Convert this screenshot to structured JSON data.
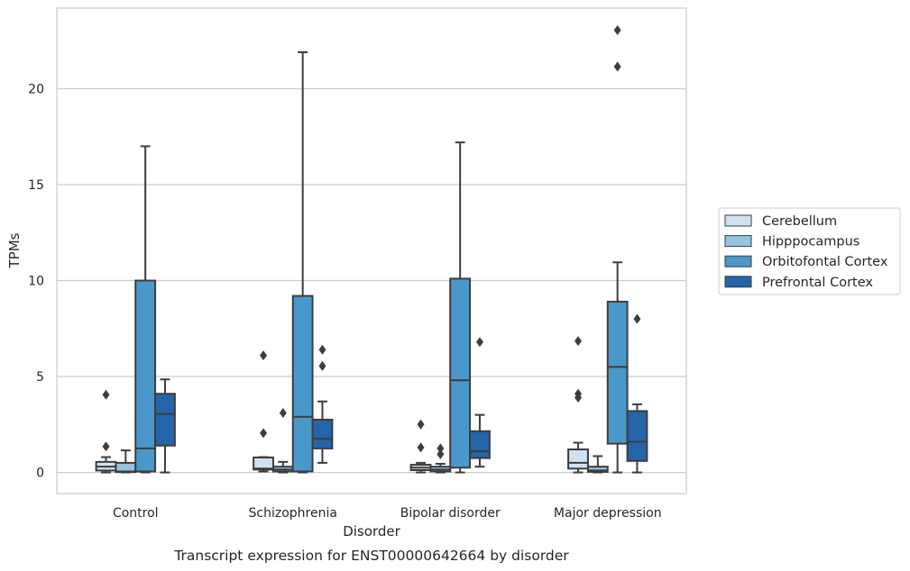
{
  "caption": "Transcript expression for ENST00000642664 by disorder",
  "chart_data": {
    "type": "box",
    "title": "",
    "xlabel": "Disorder",
    "ylabel": "TPMs",
    "ylim": [
      -1.1,
      24.2
    ],
    "yticks": [
      0,
      5,
      10,
      15,
      20
    ],
    "grid": "horizontal",
    "legend_position": "right",
    "categories": [
      "Control",
      "Schizophrenia",
      "Bipolar disorder",
      "Major depression"
    ],
    "series": [
      {
        "name": "Cerebellum",
        "color": "#d0e1f2",
        "boxes": [
          {
            "whislo": 0,
            "q1": 0.1,
            "med": 0.3,
            "q3": 0.55,
            "whishi": 0.8,
            "fliers": [
              1.35,
              4.05
            ]
          },
          {
            "whislo": 0.05,
            "q1": 0.15,
            "med": 0.2,
            "q3": 0.78,
            "whishi": 0.8,
            "fliers": [
              2.05,
              6.1
            ]
          },
          {
            "whislo": 0,
            "q1": 0.12,
            "med": 0.25,
            "q3": 0.4,
            "whishi": 0.5,
            "fliers": [
              1.3,
              2.5
            ]
          },
          {
            "whislo": 0,
            "q1": 0.2,
            "med": 0.5,
            "q3": 1.2,
            "whishi": 1.55,
            "fliers": [
              3.9,
              4.1,
              6.85
            ]
          }
        ]
      },
      {
        "name": "Hipppocampus",
        "color": "#94c4df",
        "boxes": [
          {
            "whislo": 0,
            "q1": 0.02,
            "med": 0.05,
            "q3": 0.5,
            "whishi": 1.15,
            "fliers": []
          },
          {
            "whislo": 0,
            "q1": 0.05,
            "med": 0.15,
            "q3": 0.3,
            "whishi": 0.55,
            "fliers": [
              3.1
            ]
          },
          {
            "whislo": 0,
            "q1": 0.05,
            "med": 0.15,
            "q3": 0.3,
            "whishi": 0.45,
            "fliers": [
              0.95,
              1.25
            ]
          },
          {
            "whislo": 0,
            "q1": 0.03,
            "med": 0.1,
            "q3": 0.3,
            "whishi": 0.85,
            "fliers": []
          }
        ]
      },
      {
        "name": "Orbitofontal Cortex",
        "color": "#4a98c9",
        "boxes": [
          {
            "whislo": 0,
            "q1": 0.05,
            "med": 1.25,
            "q3": 10.0,
            "whishi": 17.0,
            "fliers": []
          },
          {
            "whislo": 0,
            "q1": 0.05,
            "med": 2.9,
            "q3": 9.2,
            "whishi": 21.9,
            "fliers": []
          },
          {
            "whislo": 0,
            "q1": 0.25,
            "med": 4.8,
            "q3": 10.1,
            "whishi": 17.2,
            "fliers": []
          },
          {
            "whislo": 0,
            "q1": 1.5,
            "med": 5.5,
            "q3": 8.9,
            "whishi": 10.95,
            "fliers": [
              21.15,
              23.05
            ]
          }
        ]
      },
      {
        "name": "Prefrontal Cortex",
        "color": "#2464a9",
        "boxes": [
          {
            "whislo": 0,
            "q1": 1.4,
            "med": 3.05,
            "q3": 4.1,
            "whishi": 4.85,
            "fliers": []
          },
          {
            "whislo": 0.5,
            "q1": 1.25,
            "med": 1.75,
            "q3": 2.75,
            "whishi": 3.7,
            "fliers": [
              5.55,
              6.4
            ]
          },
          {
            "whislo": 0.3,
            "q1": 0.75,
            "med": 1.1,
            "q3": 2.15,
            "whishi": 3.0,
            "fliers": [
              6.8
            ]
          },
          {
            "whislo": 0,
            "q1": 0.6,
            "med": 1.6,
            "q3": 3.2,
            "whishi": 3.55,
            "fliers": [
              8.0
            ]
          }
        ]
      }
    ]
  }
}
